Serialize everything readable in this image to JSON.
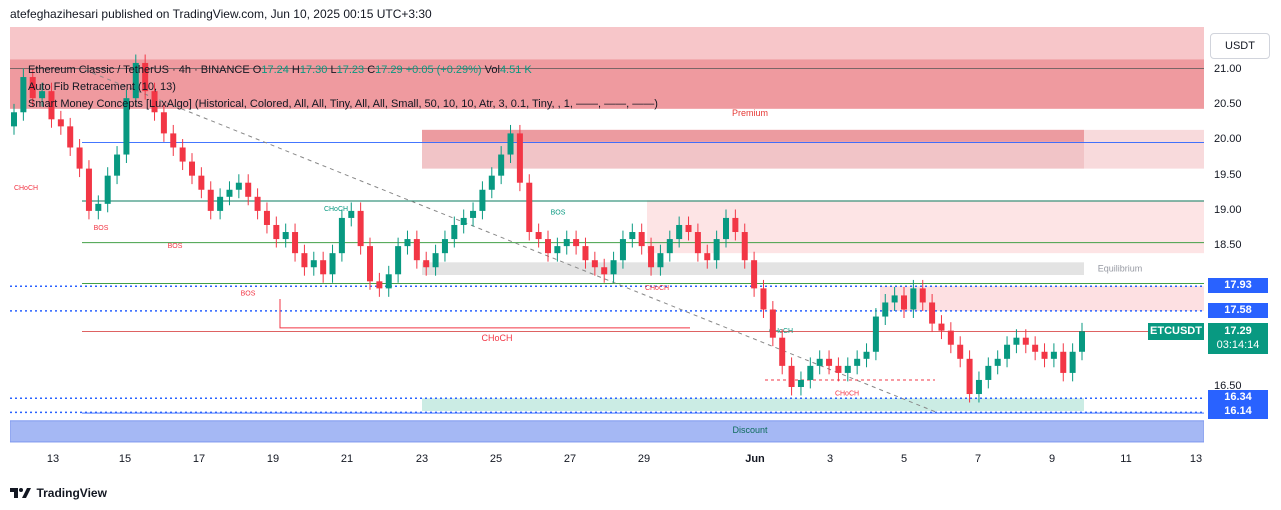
{
  "header": {
    "published_text": "atefeghazihesari published on TradingView.com, Jun 10, 2025 00:15 UTC+3:30"
  },
  "legend": {
    "symbol_line": "Ethereum Classic / TetherUS · 4h · BINANCE",
    "open_label": "O",
    "open_value": "17.24",
    "high_label": "H",
    "high_value": "17.30",
    "low_label": "L",
    "low_value": "17.23",
    "close_label": "C",
    "close_value": "17.29",
    "change": "+0.05 (+0.29%)",
    "vol_label": "Vol",
    "vol_value": "4.51 K",
    "indicator_1": "Auto Fib Retracement (10, 13)",
    "indicator_2": "Smart Money Concepts [LuxAlgo] (Historical, Colored, All, All, Tiny, All, All, Small, 50, 10, 10, Atr, 3, 0.1, Tiny, , 1, ——, ——, ——)"
  },
  "currency_button": "USDT",
  "price_axis": {
    "ticks": [
      "21.00",
      "20.50",
      "20.00",
      "19.50",
      "19.00",
      "18.50",
      "17.93",
      "17.58",
      "17.29",
      "16.50",
      "16.34",
      "16.14"
    ],
    "level_tags": [
      {
        "label": "17.93",
        "color": "#2962ff"
      },
      {
        "label": "17.58",
        "color": "#2962ff"
      },
      {
        "label": "16.34",
        "color": "#2962ff"
      },
      {
        "label": "16.14",
        "color": "#2962ff"
      }
    ],
    "symbol_tag": "ETCUSDT",
    "last_price": "17.29",
    "countdown": "03:14:14"
  },
  "time_axis": {
    "labels": [
      "13",
      "15",
      "17",
      "19",
      "21",
      "23",
      "25",
      "27",
      "29",
      "Jun",
      "3",
      "5",
      "7",
      "9",
      "11",
      "13"
    ]
  },
  "zones": {
    "premium": "Premium",
    "equilibrium": "Equilibrium",
    "discount": "Discount"
  },
  "structure_labels": [
    "CHoCH",
    "BOS",
    "BOS",
    "BOS",
    "CHoCH",
    "BOS",
    "CHoCH",
    "CHoCH",
    "CHoCH",
    "CHoCH"
  ],
  "footer": {
    "brand": "TradingView"
  },
  "colors": {
    "up": "#089981",
    "down": "#f23645",
    "level": "#2962ff"
  },
  "chart_data": {
    "type": "candlestick",
    "title": "Ethereum Classic / TetherUS · 4h · BINANCE",
    "ylim": [
      15.9,
      21.5
    ],
    "x_range": [
      "May 12 2025",
      "Jun 13 2025"
    ],
    "last": {
      "open": 17.24,
      "high": 17.3,
      "low": 17.23,
      "close": 17.29
    },
    "closes": [
      20.4,
      20.9,
      20.6,
      20.7,
      20.3,
      20.2,
      19.9,
      19.6,
      19.0,
      19.1,
      19.5,
      19.8,
      20.6,
      21.1,
      20.7,
      20.4,
      20.1,
      19.9,
      19.7,
      19.5,
      19.3,
      19.0,
      19.2,
      19.3,
      19.4,
      19.2,
      19.0,
      18.8,
      18.6,
      18.7,
      18.4,
      18.2,
      18.3,
      18.1,
      18.4,
      18.9,
      19.0,
      18.5,
      18.0,
      17.9,
      18.1,
      18.5,
      18.6,
      18.3,
      18.2,
      18.4,
      18.6,
      18.8,
      18.9,
      19.0,
      19.3,
      19.5,
      19.8,
      20.1,
      19.4,
      18.7,
      18.6,
      18.4,
      18.5,
      18.6,
      18.5,
      18.3,
      18.2,
      18.1,
      18.3,
      18.6,
      18.7,
      18.5,
      18.2,
      18.4,
      18.6,
      18.8,
      18.7,
      18.4,
      18.3,
      18.6,
      18.9,
      18.7,
      18.3,
      17.9,
      17.6,
      17.2,
      16.8,
      16.5,
      16.6,
      16.8,
      16.9,
      16.8,
      16.7,
      16.8,
      16.9,
      17.0,
      17.5,
      17.7,
      17.8,
      17.6,
      17.9,
      17.7,
      17.4,
      17.3,
      17.1,
      16.9,
      16.4,
      16.6,
      16.8,
      16.9,
      17.1,
      17.2,
      17.1,
      17.0,
      16.9,
      17.0,
      16.7,
      17.0,
      17.29
    ],
    "levels": {
      "fib_17_93": 17.93,
      "fib_17_58": 17.58,
      "fib_16_34": 16.34,
      "fib_16_14": 16.14
    }
  }
}
